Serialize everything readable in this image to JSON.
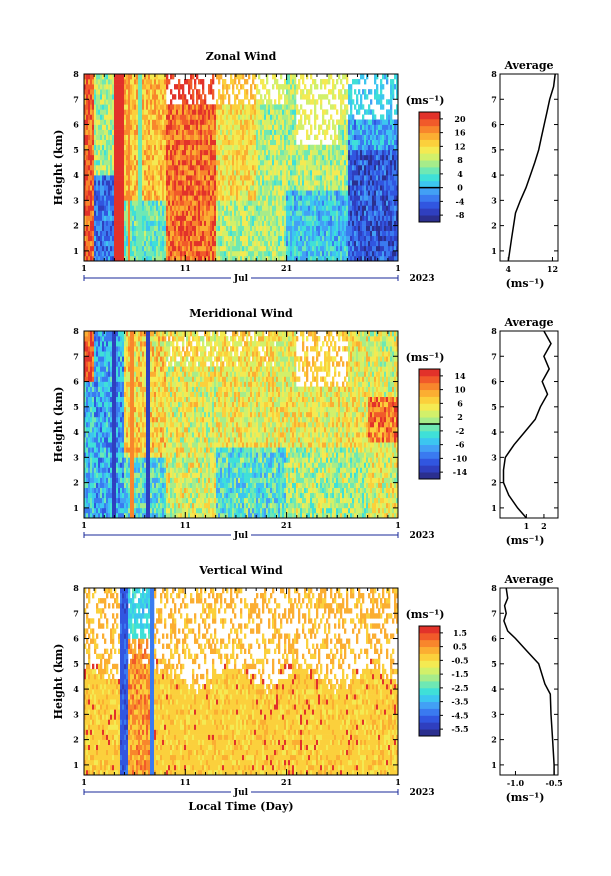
{
  "chart_data": [
    {
      "type": "heatmap",
      "title": "Zonal Wind",
      "ylabel": "Height (km)",
      "xlabel": "",
      "xlim": [
        1,
        32
      ],
      "ylim": [
        0.6,
        8.0
      ],
      "x_ticks": [
        "1",
        "11",
        "21",
        "1"
      ],
      "y_ticks": [
        "1",
        "2",
        "3",
        "4",
        "5",
        "6",
        "7",
        "8"
      ],
      "month_label": "Jul",
      "year_label": "2023",
      "colorbar": {
        "unit": "(ms⁻¹)",
        "range": [
          -10,
          22
        ],
        "ticks": [
          "-8",
          "-4",
          "0",
          "4",
          "8",
          "12",
          "16",
          "20"
        ],
        "contour_at": 0
      },
      "average": {
        "title": "Average",
        "xlabel": "(ms⁻¹)",
        "x_ticks": [
          "4",
          "12"
        ],
        "xlim": [
          2.5,
          13
        ],
        "height": [
          0.6,
          1.5,
          2.5,
          3.0,
          3.5,
          4.0,
          4.5,
          5.0,
          5.5,
          6.0,
          6.5,
          7.0,
          7.5,
          8.0
        ],
        "value": [
          4.0,
          4.6,
          5.3,
          6.2,
          7.2,
          8.0,
          8.8,
          9.5,
          10.0,
          10.5,
          11.0,
          11.5,
          12.2,
          12.5
        ]
      }
    },
    {
      "type": "heatmap",
      "title": "Meridional Wind",
      "ylabel": "Height (km)",
      "xlabel": "",
      "xlim": [
        1,
        32
      ],
      "ylim": [
        0.6,
        8.0
      ],
      "x_ticks": [
        "1",
        "11",
        "21",
        "1"
      ],
      "y_ticks": [
        "1",
        "2",
        "3",
        "4",
        "5",
        "6",
        "7",
        "8"
      ],
      "month_label": "Jul",
      "year_label": "2023",
      "colorbar": {
        "unit": "(ms⁻¹)",
        "range": [
          -16,
          16
        ],
        "ticks": [
          "-14",
          "-10",
          "-6",
          "-2",
          "2",
          "6",
          "10",
          "14"
        ],
        "contour_at": 0
      },
      "average": {
        "title": "Average",
        "xlabel": "(ms⁻¹)",
        "x_ticks": [
          "1",
          "2"
        ],
        "xlim": [
          -0.5,
          2.8
        ],
        "height": [
          0.6,
          1.0,
          1.5,
          2.0,
          2.5,
          3.0,
          3.5,
          4.0,
          4.5,
          5.0,
          5.5,
          6.0,
          6.5,
          7.0,
          7.5,
          8.0
        ],
        "value": [
          1.0,
          0.5,
          0.0,
          -0.3,
          -0.3,
          -0.2,
          0.3,
          0.9,
          1.5,
          1.8,
          2.2,
          1.9,
          2.3,
          2.0,
          2.4,
          2.0
        ]
      }
    },
    {
      "type": "heatmap",
      "title": "Vertical Wind",
      "ylabel": "Height (km)",
      "xlabel": "Local Time (Day)",
      "xlim": [
        1,
        32
      ],
      "ylim": [
        0.6,
        8.0
      ],
      "x_ticks": [
        "1",
        "11",
        "21",
        "1"
      ],
      "y_ticks": [
        "1",
        "2",
        "3",
        "4",
        "5",
        "6",
        "7",
        "8"
      ],
      "month_label": "Jul",
      "year_label": "2023",
      "colorbar": {
        "unit": "(ms⁻¹)",
        "range": [
          -6,
          2
        ],
        "ticks": [
          "-5.5",
          "-4.5",
          "-3.5",
          "-2.5",
          "-1.5",
          "-0.5",
          "0.5",
          "1.5"
        ],
        "contour_at": null
      },
      "average": {
        "title": "Average",
        "xlabel": "(ms⁻¹)",
        "x_ticks": [
          "-1.0",
          "-0.5"
        ],
        "xlim": [
          -1.2,
          -0.45
        ],
        "height": [
          0.6,
          1.0,
          2.0,
          3.0,
          3.8,
          4.2,
          5.0,
          5.5,
          6.0,
          6.3,
          6.7,
          7.0,
          7.3,
          7.6,
          8.0
        ],
        "value": [
          -0.5,
          -0.5,
          -0.52,
          -0.54,
          -0.55,
          -0.62,
          -0.7,
          -0.85,
          -1.0,
          -1.1,
          -1.15,
          -1.12,
          -1.14,
          -1.1,
          -1.12
        ]
      }
    }
  ]
}
